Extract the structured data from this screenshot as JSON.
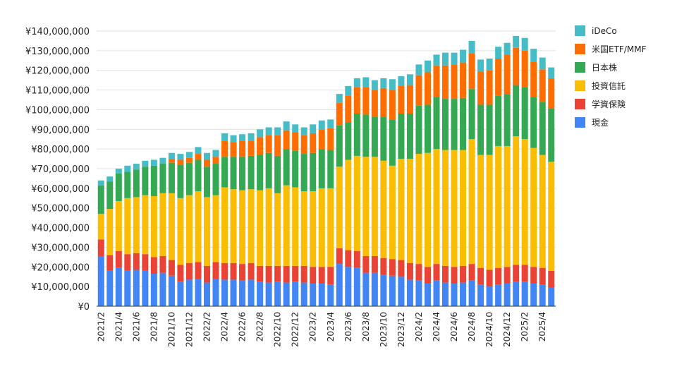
{
  "chart_data": {
    "type": "bar",
    "stacked": true,
    "title": "",
    "xlabel": "",
    "ylabel": "",
    "ylim": [
      0,
      140000000
    ],
    "y_ticks": [
      0,
      10000000,
      20000000,
      30000000,
      40000000,
      50000000,
      60000000,
      70000000,
      80000000,
      90000000,
      100000000,
      110000000,
      120000000,
      130000000,
      140000000
    ],
    "y_tick_labels": [
      "¥0",
      "¥10,000,000",
      "¥20,000,000",
      "¥30,000,000",
      "¥40,000,000",
      "¥50,000,000",
      "¥60,000,000",
      "¥70,000,000",
      "¥80,000,000",
      "¥90,000,000",
      "¥100,000,000",
      "¥110,000,000",
      "¥120,000,000",
      "¥130,000,000",
      "¥140,000,000"
    ],
    "grid": true,
    "legend_position": "right",
    "categories": [
      "2021/2",
      "2021/3",
      "2021/4",
      "2021/5",
      "2021/6",
      "2021/7",
      "2021/8",
      "2021/9",
      "2021/10",
      "2021/11",
      "2021/12",
      "2022/1",
      "2022/2",
      "2022/3",
      "2022/4",
      "2022/5",
      "2022/6",
      "2022/7",
      "2022/8",
      "2022/9",
      "2022/10",
      "2022/11",
      "2022/12",
      "2023/1",
      "2023/2",
      "2023/3",
      "2023/4",
      "2023/5",
      "2023/6",
      "2023/7",
      "2023/8",
      "2023/9",
      "2023/10",
      "2023/11",
      "2023/12",
      "2024/1",
      "2024/2",
      "2024/3",
      "2024/4",
      "2024/5",
      "2024/6",
      "2024/7",
      "2024/8",
      "2024/9",
      "2024/10",
      "2024/11",
      "2024/12",
      "2025/1",
      "2025/2",
      "2025/3",
      "2025/4",
      "2025/5"
    ],
    "x_tick_labels": [
      "2021/2",
      "2021/4",
      "2021/6",
      "2021/8",
      "2021/10",
      "2021/12",
      "2022/2",
      "2022/4",
      "2022/6",
      "2022/8",
      "2022/10",
      "2022/12",
      "2023/2",
      "2023/4",
      "2023/6",
      "2023/8",
      "2023/10",
      "2023/12",
      "2024/2",
      "2024/4",
      "2024/6",
      "2024/8",
      "2024/10",
      "2024/12",
      "2025/2",
      "2025/4"
    ],
    "series": [
      {
        "name": "現金",
        "color": "#4285f4",
        "values": [
          25.5,
          18,
          19.5,
          18,
          18.5,
          18,
          16.5,
          17,
          15.5,
          12.5,
          13.5,
          14,
          12,
          14,
          13.5,
          13.5,
          13,
          13.5,
          12.5,
          12,
          12.5,
          12,
          12.5,
          12,
          11.5,
          11.5,
          11,
          21.5,
          20,
          19.5,
          17,
          17,
          16,
          15.5,
          15,
          13.5,
          13,
          11.5,
          13,
          12,
          11.5,
          12,
          13,
          11,
          10,
          11,
          11.5,
          12.5,
          12.5,
          11.5,
          11,
          9.5
        ]
      },
      {
        "name": "学資保険",
        "color": "#ea4335",
        "values": [
          8.5,
          8,
          8.5,
          8.5,
          8.5,
          8.5,
          8.5,
          8.5,
          8,
          8.5,
          8.5,
          8.5,
          8.5,
          8.5,
          8.5,
          8.5,
          8.5,
          8.5,
          8,
          8.5,
          8,
          8.5,
          8,
          8.5,
          8.5,
          8.5,
          9,
          8,
          8.5,
          8.5,
          8.5,
          8.5,
          8.5,
          8.5,
          8.5,
          8.5,
          8.5,
          8.5,
          8.5,
          8.5,
          8.5,
          8.5,
          8.5,
          8.5,
          8.5,
          8.5,
          8.5,
          8.5,
          8.5,
          8.5,
          8.5,
          8.5
        ]
      },
      {
        "name": "投資信託",
        "color": "#fbbc04",
        "values": [
          13,
          23.5,
          25.5,
          28.5,
          28.5,
          30,
          31,
          32,
          34,
          34,
          34.5,
          36,
          35,
          34,
          38.5,
          37.5,
          37.5,
          37.5,
          38.5,
          39.5,
          37,
          41,
          40,
          38,
          38.5,
          40,
          40,
          41.5,
          46,
          48.5,
          50.5,
          50.5,
          49.5,
          47.5,
          51.5,
          53,
          56,
          58,
          58.5,
          59,
          59.5,
          59,
          63.5,
          57.5,
          58.5,
          62,
          61.5,
          65.5,
          64,
          60.5,
          57.5,
          55.5
        ]
      },
      {
        "name": "日本株",
        "color": "#34a853",
        "values": [
          14.5,
          14,
          14,
          13.5,
          14,
          14.5,
          15.5,
          15,
          15.5,
          17,
          16.5,
          16,
          15.5,
          16,
          15.5,
          16.5,
          17,
          17,
          18,
          18,
          19,
          18.5,
          18.5,
          19,
          19.5,
          20,
          19.5,
          21,
          19,
          21.5,
          21.5,
          20.5,
          22.5,
          23.5,
          23,
          23,
          24.5,
          24.5,
          26.5,
          26,
          26,
          26.5,
          25.5,
          25.5,
          25.5,
          25.5,
          26.5,
          26,
          26.5,
          26,
          27,
          27
        ]
      },
      {
        "name": "米国ETF/MMF",
        "color": "#ff6d01",
        "values": [
          0,
          0,
          0,
          0,
          0,
          0,
          0,
          0,
          2,
          2.5,
          2.5,
          3,
          3.5,
          3.5,
          8,
          7.5,
          8,
          7.5,
          9,
          9,
          10.5,
          9.5,
          9.5,
          9.5,
          10,
          10,
          11,
          11.5,
          13.5,
          13.5,
          14,
          13.5,
          14.5,
          15,
          14,
          14.5,
          15.5,
          16.5,
          16,
          17,
          17.5,
          18,
          18,
          17,
          17.5,
          19,
          20,
          19,
          18.5,
          18,
          16.5,
          15.5
        ]
      },
      {
        "name": "iDeCo",
        "color": "#46bdc6",
        "values": [
          2.5,
          2.5,
          2.5,
          3,
          3,
          3,
          3,
          3,
          3,
          3,
          3,
          3.5,
          3.5,
          3.5,
          4,
          3.5,
          3.5,
          4,
          4,
          4,
          4,
          4.5,
          4,
          4,
          4.5,
          4.5,
          4.5,
          4.5,
          5,
          4.5,
          5,
          5,
          5,
          5.5,
          5,
          5.5,
          5.5,
          6,
          5.5,
          6.5,
          6,
          6.5,
          6.5,
          6,
          6,
          6,
          6,
          6,
          6.5,
          6.5,
          6,
          5.5
        ]
      }
    ]
  }
}
